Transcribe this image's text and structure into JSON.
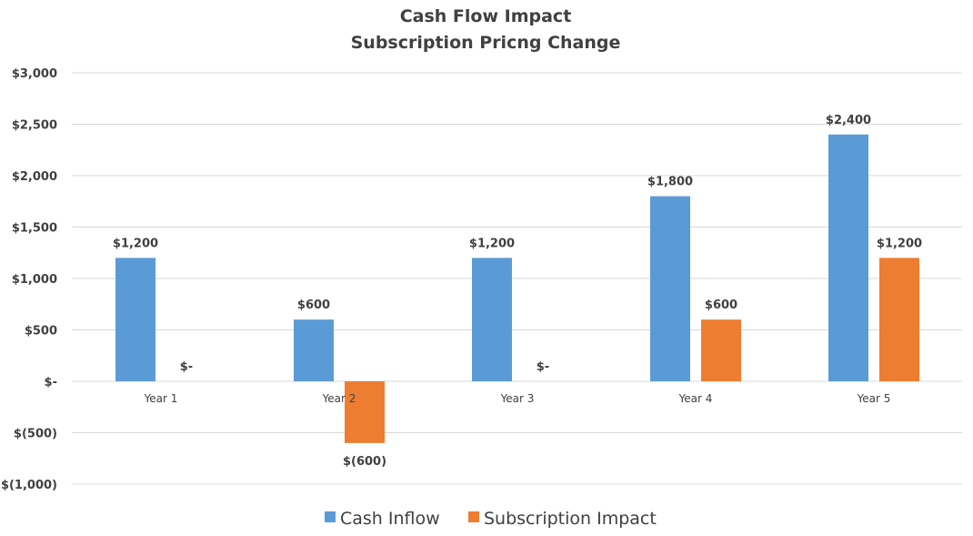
{
  "chart_data": {
    "type": "bar",
    "title": "Cash Flow Impact",
    "subtitle": "Subscription Pricng Change",
    "categories": [
      "Year 1",
      "Year 2",
      "Year 3",
      "Year 4",
      "Year 5"
    ],
    "series": [
      {
        "name": "Cash Inflow",
        "color": "#5b9bd5",
        "values": [
          1200,
          600,
          1200,
          1800,
          2400
        ],
        "labels": [
          "$1,200",
          "$600",
          "$1,200",
          "$1,800",
          "$2,400"
        ]
      },
      {
        "name": "Subscription Impact",
        "color": "#ed7d31",
        "values": [
          0,
          -600,
          0,
          600,
          1200
        ],
        "labels": [
          "$-",
          "$(600)",
          "$-",
          "$600",
          "$1,200"
        ]
      }
    ],
    "ylim": [
      -1000,
      3000
    ],
    "yticks": [
      3000,
      2500,
      2000,
      1500,
      1000,
      500,
      0,
      -500,
      -1000
    ],
    "ytick_labels": [
      "$3,000",
      "$2,500",
      "$2,000",
      "$1,500",
      "$1,000",
      "$500",
      "$-",
      "$(500)",
      "$(1,000)"
    ],
    "xlabel": "",
    "ylabel": "",
    "grid": true,
    "gridline_color": "#d9d9d9",
    "legend_position": "bottom"
  }
}
